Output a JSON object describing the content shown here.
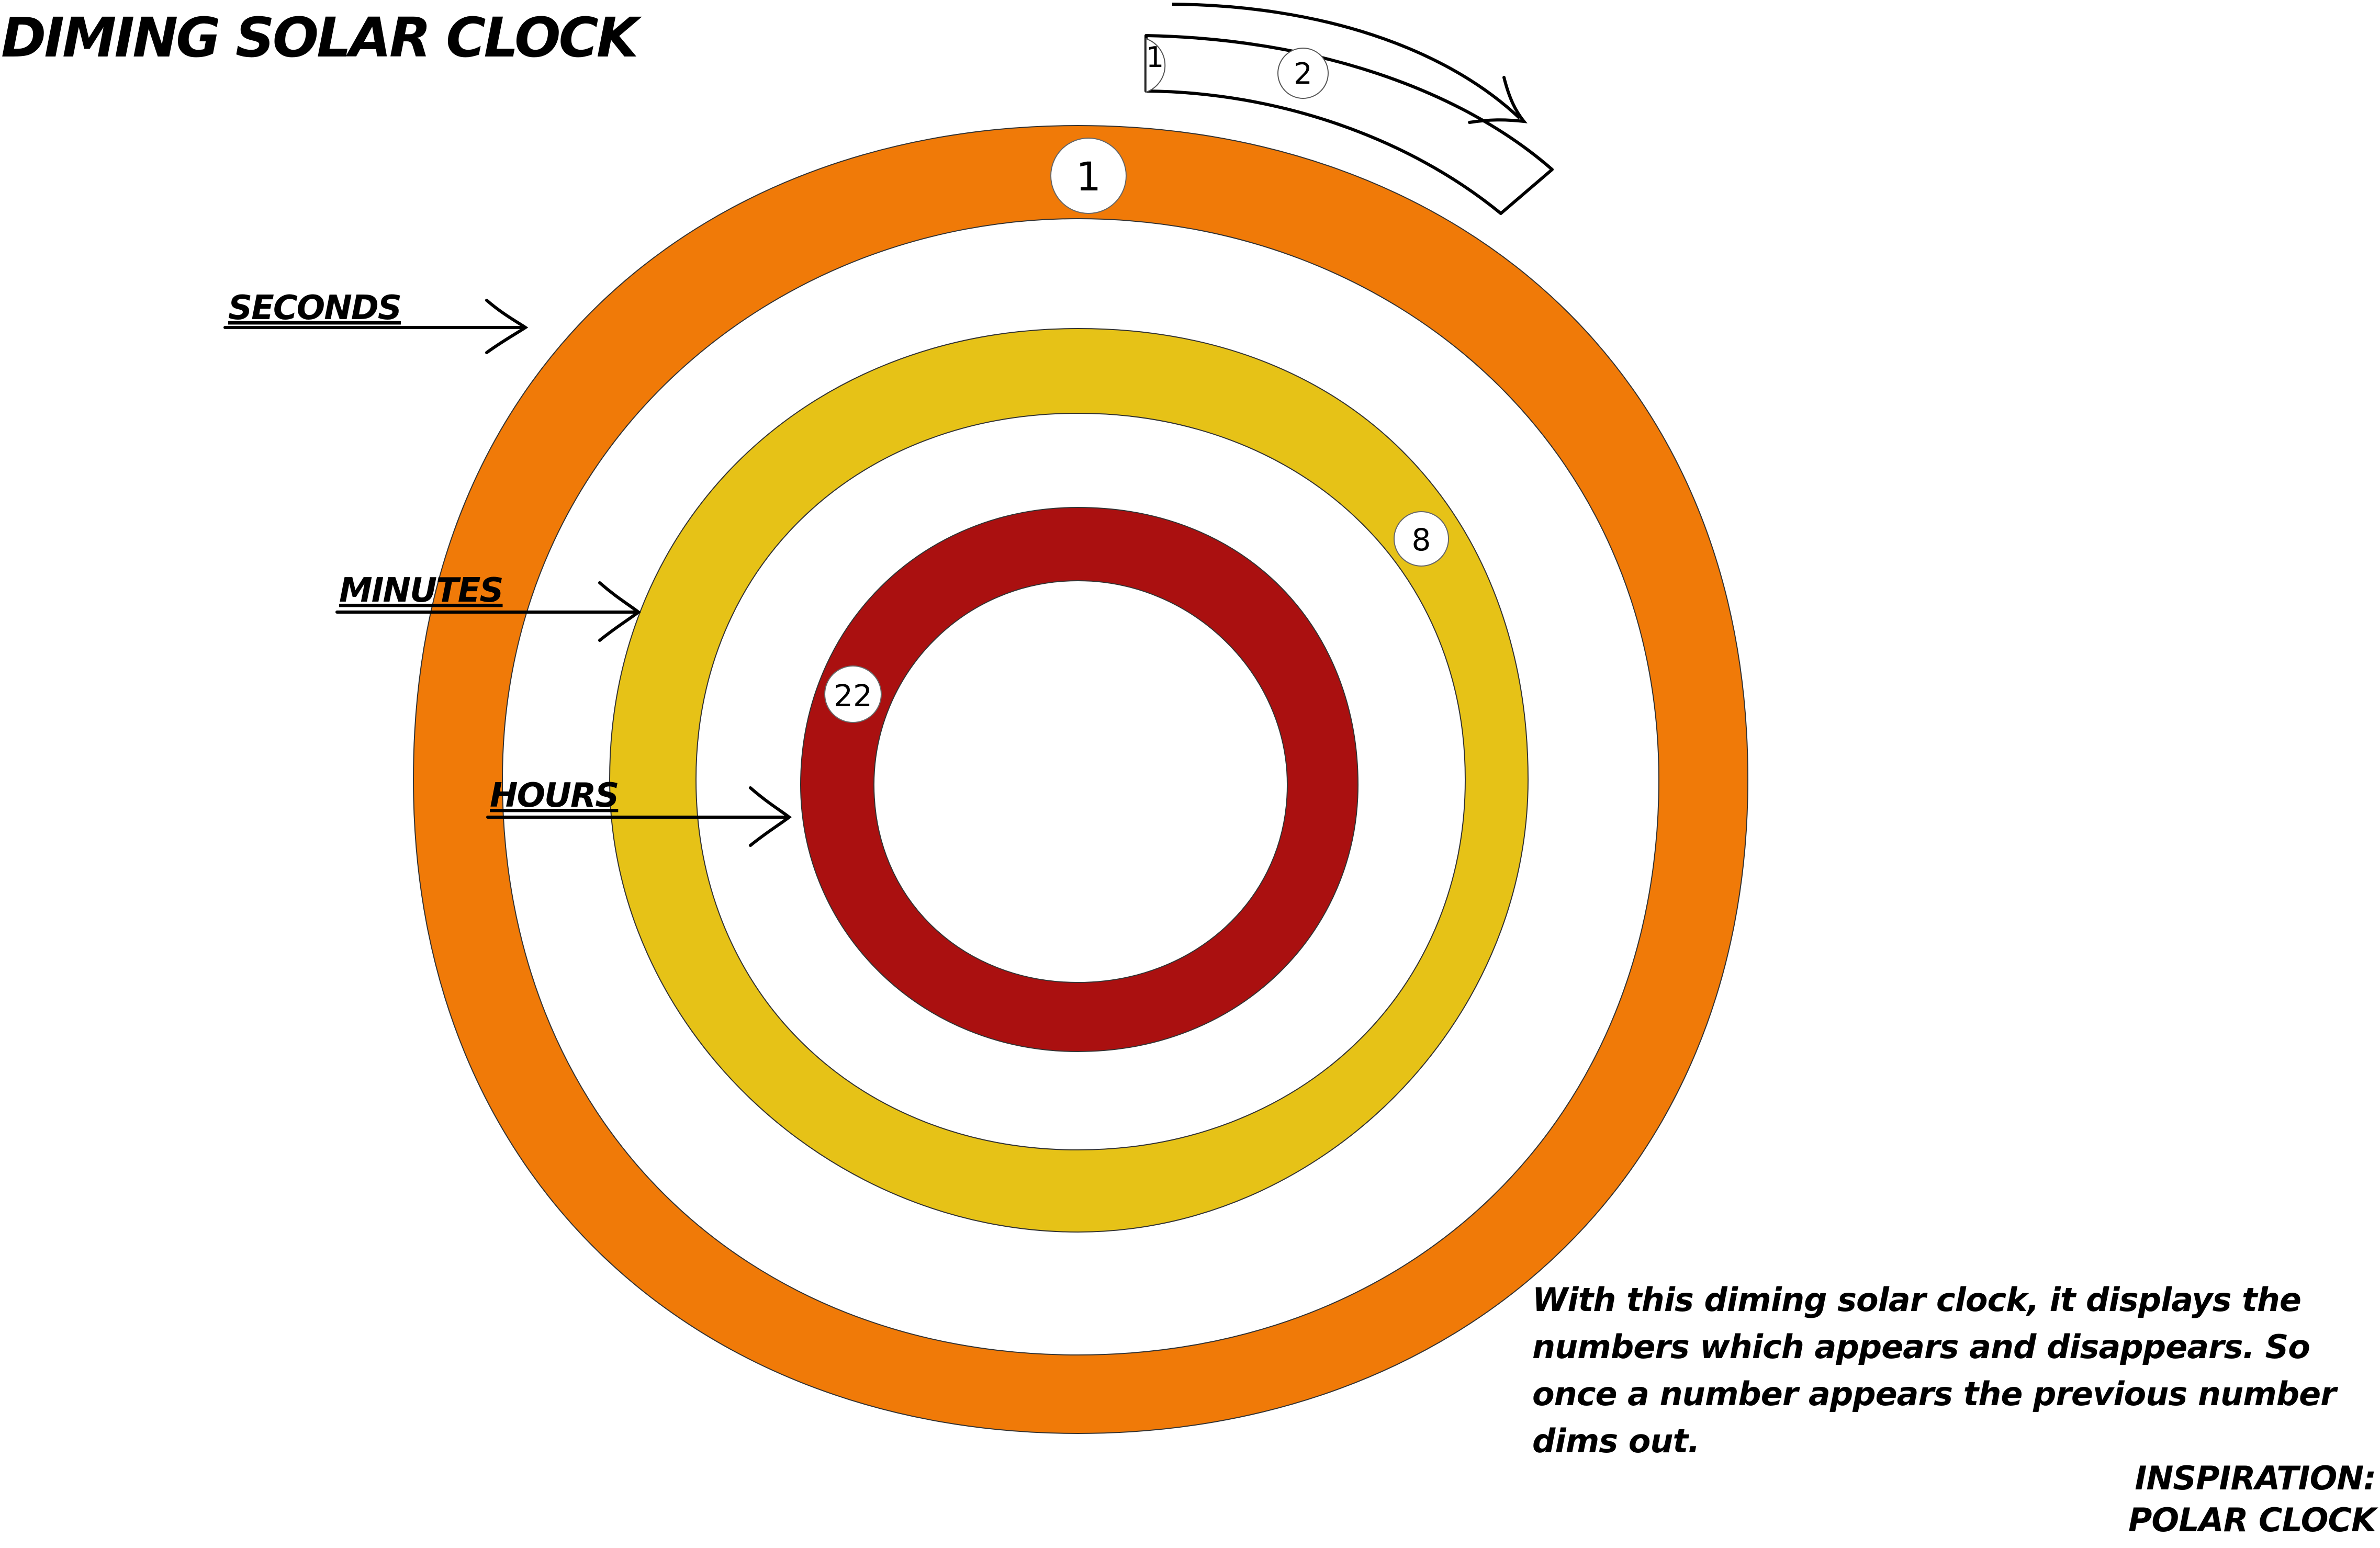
{
  "title": "DIMING SOLAR CLOCK",
  "labels": {
    "seconds": "SECONDS",
    "minutes": "MINUTES",
    "hours": "HOURS"
  },
  "markers": {
    "seconds": "1",
    "minutes": "8",
    "hours": "22"
  },
  "inset_strip": {
    "previous": "1",
    "next": "2"
  },
  "description": "With this diming solar clock, it displays the numbers which appears and disappears. So once a number appears the previous number dims out.",
  "inspiration": {
    "line1": "INSPIRATION:",
    "line2": "POLAR CLOCK"
  },
  "colors": {
    "seconds_ring": "#F07A08",
    "minutes_ring": "#E6C217",
    "hours_ring": "#AA1010",
    "background": "#FFFFFF"
  }
}
